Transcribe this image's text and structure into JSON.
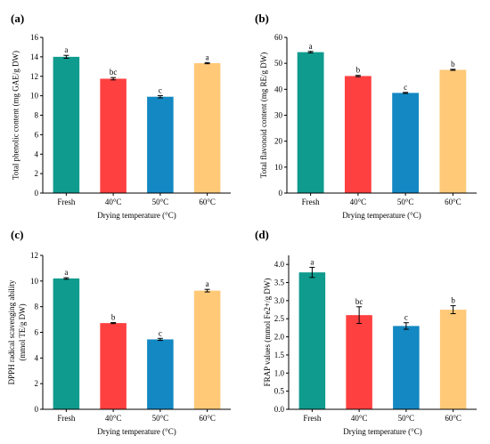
{
  "figure": {
    "colors": [
      "#0f9b8e",
      "#ff4040",
      "#1388c2",
      "#ffc978"
    ]
  },
  "chart_data": [
    {
      "panel": "(a)",
      "type": "bar",
      "categories": [
        "Fresh",
        "40°C",
        "50°C",
        "60°C"
      ],
      "values": [
        14.0,
        11.75,
        9.9,
        13.35
      ],
      "errors": [
        0.15,
        0.12,
        0.12,
        0.06
      ],
      "sig": [
        "a",
        "bc",
        "c",
        "a"
      ],
      "xlabel": "Drying temperature (°C)",
      "ylabel": "Total phenolic content (mg GAE/g DW)",
      "ylim": [
        0,
        16
      ],
      "yticks": [
        "0",
        "2",
        "4",
        "6",
        "8",
        "10",
        "12",
        "14",
        "16"
      ]
    },
    {
      "panel": "(b)",
      "type": "bar",
      "categories": [
        "Fresh",
        "40°C",
        "50°C",
        "60°C"
      ],
      "values": [
        54.3,
        45.1,
        38.6,
        47.5
      ],
      "errors": [
        0.3,
        0.25,
        0.2,
        0.2
      ],
      "sig": [
        "a",
        "b",
        "c",
        "b"
      ],
      "xlabel": "Drying temperature (°C)",
      "ylabel": "Total flavonoid content (mg RE/g DW)",
      "ylim": [
        0,
        60
      ],
      "yticks": [
        "0",
        "10",
        "20",
        "30",
        "40",
        "50",
        "60"
      ]
    },
    {
      "panel": "(c)",
      "type": "bar",
      "categories": [
        "Fresh",
        "40°C",
        "50°C",
        "60°C"
      ],
      "values": [
        10.2,
        6.72,
        5.45,
        9.25
      ],
      "errors": [
        0.06,
        0.04,
        0.08,
        0.1
      ],
      "sig": [
        "a",
        "b",
        "c",
        "a"
      ],
      "xlabel": "Drying temperature (°C)",
      "ylabel": [
        "DPPH radical scavenging ability",
        "(mmol TE/g DW)"
      ],
      "ylim": [
        0,
        12
      ],
      "yticks": [
        "0",
        "2",
        "4",
        "6",
        "8",
        "10",
        "12"
      ]
    },
    {
      "panel": "(d)",
      "type": "bar",
      "categories": [
        "Fresh",
        "40°C",
        "50°C",
        "60°C"
      ],
      "values": [
        3.78,
        2.6,
        2.3,
        2.75
      ],
      "errors": [
        0.14,
        0.23,
        0.09,
        0.11
      ],
      "sig": [
        "a",
        "bc",
        "c",
        "b"
      ],
      "xlabel": "Drying temperature (°C)",
      "ylabel": "FRAP values (mmol Fe2+/g DW)",
      "ylim": [
        0,
        4.25
      ],
      "yticks": [
        "0.0",
        "0.5",
        "1.0",
        "1.5",
        "2.0",
        "2.5",
        "3.0",
        "3.5",
        "4.0"
      ]
    }
  ]
}
